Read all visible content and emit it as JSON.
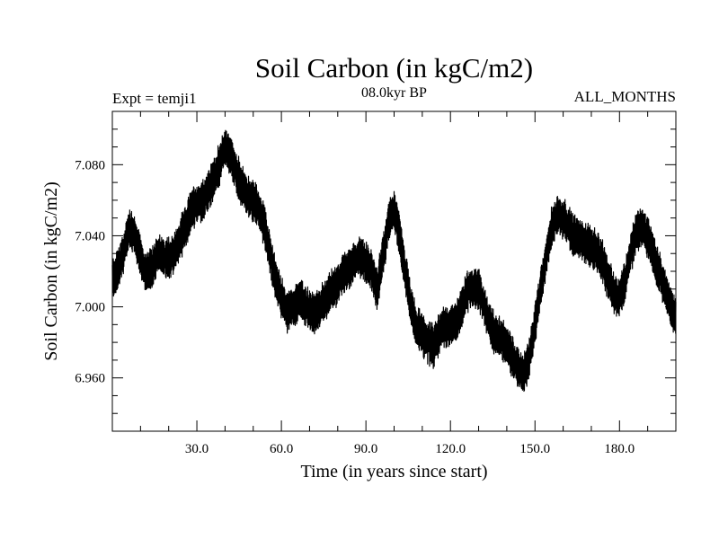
{
  "chart_data": {
    "type": "line",
    "title": "Soil Carbon (in kgC/m2)",
    "subtitle": "08.0kyr BP",
    "annotation_left": "Expt = temji1",
    "annotation_right": "ALL_MONTHS",
    "xlabel": "Time (in years since start)",
    "ylabel": "Soil Carbon (in kgC/m2)",
    "xlim": [
      0,
      200
    ],
    "ylim": [
      6.93,
      7.11
    ],
    "x_ticks": [
      30,
      60,
      90,
      120,
      150,
      180
    ],
    "x_tick_labels": [
      "30.0",
      "60.0",
      "90.0",
      "120.0",
      "150.0",
      "180.0"
    ],
    "y_ticks": [
      6.96,
      7.0,
      7.04,
      7.08
    ],
    "y_tick_labels": [
      "6.960",
      "7.000",
      "7.040",
      "7.080"
    ],
    "grid": false,
    "series": [
      {
        "color": "#000000",
        "x": [
          0,
          2,
          4,
          6,
          8,
          10,
          12,
          14,
          16,
          18,
          20,
          22,
          24,
          26,
          28,
          30,
          32,
          34,
          36,
          38,
          40,
          42,
          44,
          46,
          48,
          50,
          52,
          54,
          56,
          58,
          60,
          62,
          64,
          66,
          68,
          70,
          72,
          74,
          76,
          78,
          80,
          82,
          84,
          86,
          88,
          90,
          92,
          94,
          96,
          98,
          100,
          102,
          104,
          106,
          108,
          110,
          112,
          114,
          116,
          118,
          120,
          122,
          124,
          126,
          128,
          130,
          132,
          134,
          136,
          138,
          140,
          142,
          144,
          146,
          148,
          150,
          152,
          154,
          156,
          158,
          160,
          162,
          164,
          166,
          168,
          170,
          172,
          174,
          176,
          178,
          180,
          182,
          184,
          186,
          188,
          190,
          192,
          194,
          196,
          198,
          200
        ],
        "y": [
          7.015,
          7.022,
          7.03,
          7.045,
          7.04,
          7.028,
          7.018,
          7.022,
          7.03,
          7.027,
          7.028,
          7.03,
          7.038,
          7.045,
          7.055,
          7.058,
          7.06,
          7.065,
          7.072,
          7.08,
          7.09,
          7.085,
          7.075,
          7.068,
          7.062,
          7.06,
          7.055,
          7.045,
          7.03,
          7.015,
          7.005,
          6.998,
          7.0,
          7.004,
          7.002,
          6.998,
          6.996,
          7.0,
          7.005,
          7.01,
          7.012,
          7.018,
          7.022,
          7.025,
          7.028,
          7.025,
          7.02,
          7.01,
          7.028,
          7.048,
          7.055,
          7.04,
          7.02,
          7.0,
          6.988,
          6.985,
          6.98,
          6.978,
          6.985,
          6.99,
          6.988,
          6.992,
          7.0,
          7.008,
          7.012,
          7.01,
          7.0,
          6.99,
          6.984,
          6.982,
          6.978,
          6.972,
          6.965,
          6.962,
          6.972,
          6.99,
          7.01,
          7.028,
          7.045,
          7.052,
          7.05,
          7.045,
          7.04,
          7.038,
          7.036,
          7.034,
          7.032,
          7.025,
          7.015,
          7.008,
          7.005,
          7.015,
          7.03,
          7.042,
          7.045,
          7.04,
          7.03,
          7.02,
          7.01,
          7.0,
          6.995
        ]
      }
    ]
  }
}
